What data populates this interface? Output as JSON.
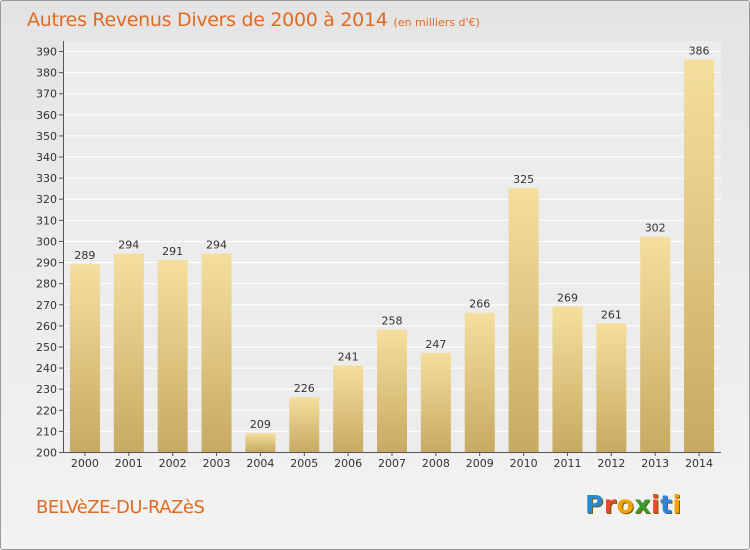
{
  "chart_data": {
    "type": "bar",
    "title": "Autres Revenus Divers de 2000 à 2014",
    "subtitle": "(en milliers d'€)",
    "categories": [
      "2000",
      "2001",
      "2002",
      "2003",
      "2004",
      "2005",
      "2006",
      "2007",
      "2008",
      "2009",
      "2010",
      "2011",
      "2012",
      "2013",
      "2014"
    ],
    "values": [
      289,
      294,
      291,
      294,
      209,
      226,
      241,
      258,
      247,
      266,
      325,
      269,
      261,
      302,
      386
    ],
    "ylim": [
      200,
      390
    ],
    "yticks": [
      200,
      210,
      220,
      230,
      240,
      250,
      260,
      270,
      280,
      290,
      300,
      310,
      320,
      330,
      340,
      350,
      360,
      370,
      380,
      390
    ],
    "grid": true,
    "xlabel": "",
    "ylabel": "",
    "colors": {
      "bar_top": "#f5df9e",
      "bar_bottom": "#c7aa62",
      "text": "#333333",
      "accent": "#e06a21"
    }
  },
  "footer": {
    "commune": "BELVèZE-DU-RAZèS"
  },
  "logo": {
    "letters": [
      {
        "ch": "P",
        "color": "#2a8ad1"
      },
      {
        "ch": "r",
        "color": "#e24c28"
      },
      {
        "ch": "o",
        "color": "#f2a200"
      },
      {
        "ch": "x",
        "color": "#3a9b2c"
      },
      {
        "ch": "i",
        "color": "#e24c28"
      },
      {
        "ch": "t",
        "color": "#2a8ad1"
      },
      {
        "ch": "i",
        "color": "#f2a200"
      }
    ]
  }
}
